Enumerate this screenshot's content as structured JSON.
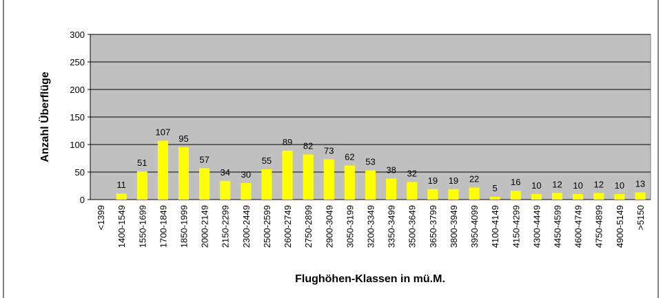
{
  "chart_data": {
    "type": "bar",
    "ylabel": "Anzahl Überflüge",
    "xlabel": "Flughöhen-Klassen in mü.M.",
    "categories": [
      "<1399",
      "1400-1549",
      "1550-1699",
      "1700-1849",
      "1850-1999",
      "2000-2149",
      "2150-2299",
      "2300-2449",
      "2500-2599",
      "2600-2749",
      "2750-2899",
      "2900-3049",
      "3050-3199",
      "3200-3349",
      "3350-3499",
      "3500-3649",
      "3650-3799",
      "3800-3949",
      "3950-4099",
      "4100-4149",
      "4150-4299",
      "4300-4449",
      "4450-4599",
      "4600-4749",
      "4750-4899",
      "4900-5149",
      ">5150"
    ],
    "values": [
      null,
      11,
      51,
      107,
      95,
      57,
      34,
      30,
      55,
      89,
      82,
      73,
      62,
      53,
      38,
      32,
      19,
      19,
      22,
      5,
      16,
      10,
      12,
      10,
      12,
      10,
      13
    ],
    "color": "#ffff00",
    "ylim": [
      0,
      300
    ],
    "yticks": [
      0,
      50,
      100,
      150,
      200,
      250,
      300
    ],
    "grid": true
  }
}
